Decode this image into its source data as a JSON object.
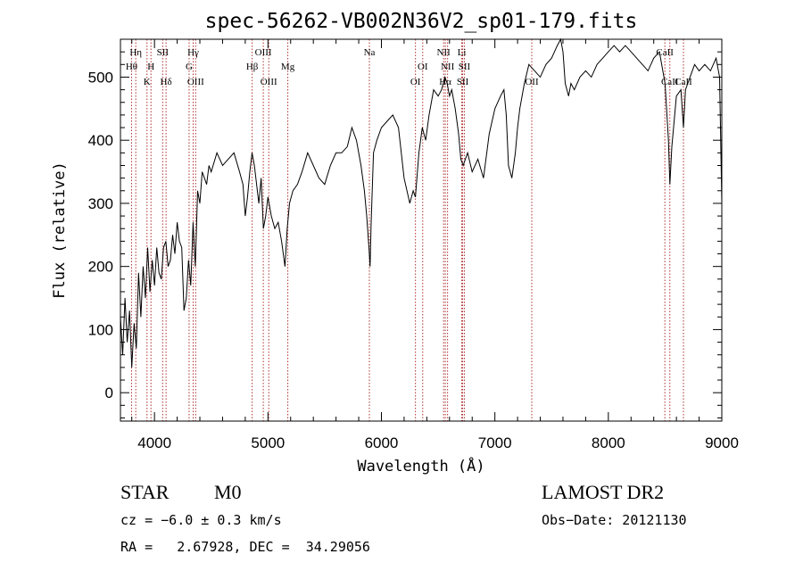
{
  "chart_data": {
    "type": "line",
    "title": "spec-56262-VB002N36V2_sp01-179.fits",
    "xlabel": "Wavelength (Å)",
    "ylabel": "Flux (relative)",
    "xlim": [
      3700,
      9000
    ],
    "ylim": [
      -45,
      560
    ],
    "xticks": [
      4000,
      5000,
      6000,
      7000,
      8000,
      9000
    ],
    "yticks": [
      0,
      100,
      200,
      300,
      400,
      500
    ],
    "grid": false,
    "series": [
      {
        "color": "#000000",
        "x": [
          3700,
          3720,
          3740,
          3760,
          3780,
          3800,
          3820,
          3840,
          3860,
          3880,
          3900,
          3920,
          3940,
          3960,
          3980,
          4000,
          4020,
          4040,
          4060,
          4080,
          4100,
          4120,
          4140,
          4160,
          4180,
          4200,
          4220,
          4240,
          4260,
          4280,
          4300,
          4320,
          4340,
          4360,
          4380,
          4400,
          4420,
          4440,
          4460,
          4480,
          4500,
          4550,
          4600,
          4650,
          4700,
          4750,
          4780,
          4800,
          4820,
          4840,
          4860,
          4880,
          4900,
          4920,
          4940,
          4960,
          4980,
          5000,
          5030,
          5060,
          5090,
          5120,
          5150,
          5170,
          5190,
          5220,
          5260,
          5300,
          5350,
          5400,
          5450,
          5500,
          5550,
          5600,
          5650,
          5700,
          5740,
          5780,
          5820,
          5850,
          5870,
          5890,
          5900,
          5910,
          5930,
          5960,
          6000,
          6050,
          6100,
          6150,
          6200,
          6250,
          6280,
          6300,
          6330,
          6360,
          6390,
          6420,
          6460,
          6500,
          6530,
          6560,
          6580,
          6600,
          6620,
          6650,
          6680,
          6700,
          6720,
          6760,
          6800,
          6850,
          6900,
          6950,
          7000,
          7050,
          7080,
          7100,
          7120,
          7150,
          7180,
          7200,
          7220,
          7260,
          7300,
          7350,
          7400,
          7450,
          7500,
          7550,
          7580,
          7600,
          7620,
          7650,
          7670,
          7700,
          7750,
          7800,
          7850,
          7900,
          7950,
          8000,
          8050,
          8100,
          8150,
          8200,
          8250,
          8300,
          8350,
          8400,
          8450,
          8500,
          8530,
          8542,
          8560,
          8600,
          8640,
          8662,
          8680,
          8720,
          8760,
          8800,
          8850,
          8900,
          8950,
          8980,
          9000
        ],
        "values": [
          120,
          60,
          150,
          80,
          130,
          40,
          110,
          70,
          190,
          120,
          200,
          150,
          230,
          160,
          210,
          170,
          230,
          190,
          180,
          230,
          240,
          200,
          210,
          250,
          220,
          270,
          240,
          230,
          130,
          150,
          210,
          170,
          270,
          200,
          320,
          300,
          350,
          340,
          330,
          360,
          350,
          380,
          360,
          370,
          380,
          350,
          330,
          280,
          310,
          350,
          380,
          360,
          330,
          300,
          340,
          260,
          280,
          310,
          280,
          260,
          270,
          240,
          200,
          260,
          300,
          320,
          330,
          350,
          380,
          360,
          340,
          330,
          360,
          380,
          380,
          390,
          420,
          400,
          360,
          320,
          280,
          230,
          200,
          270,
          380,
          400,
          420,
          430,
          440,
          420,
          340,
          300,
          320,
          310,
          380,
          420,
          400,
          440,
          480,
          470,
          480,
          500,
          490,
          470,
          480,
          450,
          410,
          370,
          360,
          380,
          350,
          370,
          340,
          410,
          450,
          470,
          480,
          440,
          360,
          340,
          380,
          420,
          450,
          490,
          520,
          510,
          500,
          520,
          530,
          550,
          560,
          540,
          490,
          470,
          490,
          480,
          500,
          510,
          500,
          520,
          530,
          540,
          550,
          540,
          550,
          540,
          530,
          520,
          510,
          530,
          540,
          490,
          400,
          330,
          390,
          470,
          480,
          420,
          480,
          500,
          520,
          510,
          520,
          510,
          530,
          500,
          300
        ]
      }
    ],
    "lines": [
      {
        "label": "Hη",
        "x": 3835,
        "row": 1
      },
      {
        "label": "Hθ",
        "x": 3798,
        "row": 2
      },
      {
        "label": "K",
        "x": 3934,
        "row": 3
      },
      {
        "label": "H",
        "x": 3969,
        "row": 2
      },
      {
        "label": "SII",
        "x": 4072,
        "row": 1
      },
      {
        "label": "Hδ",
        "x": 4102,
        "row": 3
      },
      {
        "label": "Hγ",
        "x": 4341,
        "row": 1
      },
      {
        "label": "G",
        "x": 4305,
        "row": 2
      },
      {
        "label": "OIII",
        "x": 4363,
        "row": 3
      },
      {
        "label": "Hβ",
        "x": 4861,
        "row": 2
      },
      {
        "label": "OIII",
        "x": 4959,
        "row": 1
      },
      {
        "label": "OIII",
        "x": 5007,
        "row": 3
      },
      {
        "label": "Mg",
        "x": 5175,
        "row": 2
      },
      {
        "label": "Na",
        "x": 5894,
        "row": 1
      },
      {
        "label": "OI",
        "x": 6300,
        "row": 3
      },
      {
        "label": "OI",
        "x": 6364,
        "row": 2
      },
      {
        "label": "NII",
        "x": 6548,
        "row": 1
      },
      {
        "label": "Hα",
        "x": 6563,
        "row": 3
      },
      {
        "label": "NII",
        "x": 6583,
        "row": 2
      },
      {
        "label": "Li",
        "x": 6708,
        "row": 1
      },
      {
        "label": "SII",
        "x": 6716,
        "row": 3
      },
      {
        "label": "SII",
        "x": 6731,
        "row": 2
      },
      {
        "label": "OII",
        "x": 7325,
        "row": 3
      },
      {
        "label": "CaII",
        "x": 8498,
        "row": 1
      },
      {
        "label": "CaII",
        "x": 8542,
        "row": 3
      },
      {
        "label": "CaII",
        "x": 8662,
        "row": 3
      }
    ]
  },
  "info": {
    "object_class": "STAR",
    "subclass": "M0",
    "survey": "LAMOST DR2",
    "redshift": "cz = −6.0 ± 0.3 km/s",
    "obs_date": "Obs−Date: 20121130",
    "coords": "RA =   2.67928, DEC =  34.29056"
  }
}
